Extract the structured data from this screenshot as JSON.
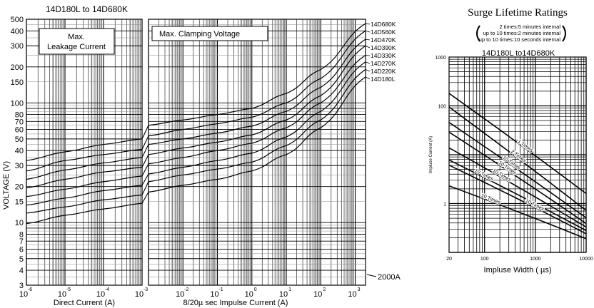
{
  "chart_data": [
    {
      "type": "line",
      "title": "14D180L to 14D680K",
      "ylabel": "VOLTAGE (V)",
      "yscale": "log",
      "ylim": [
        3,
        500
      ],
      "yticks": [
        500,
        400,
        300,
        200,
        150,
        100,
        80,
        70,
        60,
        50,
        40,
        30,
        20,
        15,
        10,
        8,
        7,
        6,
        5,
        4,
        3
      ],
      "panels": [
        {
          "name": "leakage",
          "annotation": [
            "Max.",
            "Leakage Current"
          ],
          "xlabel": "Direct Current  (A)",
          "xscale": "log",
          "xlim_exp": [
            -6,
            -3
          ],
          "xtick_exp": [
            "-6",
            "-5",
            "-4",
            "-3"
          ],
          "x_exp": [
            -6,
            -5,
            -4,
            -3
          ],
          "series": [
            {
              "name": "14D680K",
              "values": [
                33,
                39,
                45,
                50
              ]
            },
            {
              "name": "14D560K",
              "values": [
                27,
                33,
                37,
                41
              ]
            },
            {
              "name": "14D470K",
              "values": [
                23,
                27.5,
                31.5,
                35
              ]
            },
            {
              "name": "14D390K",
              "values": [
                19.5,
                23,
                26.5,
                29
              ]
            },
            {
              "name": "14D330K",
              "values": [
                16.5,
                19,
                22,
                24.5
              ]
            },
            {
              "name": "14D270K",
              "values": [
                14,
                16,
                18.5,
                20.5
              ]
            },
            {
              "name": "14D220K",
              "values": [
                12,
                13.5,
                15.5,
                17
              ]
            },
            {
              "name": "14D180L",
              "values": [
                9.8,
                11.5,
                13,
                14.5
              ]
            }
          ]
        },
        {
          "name": "clamping",
          "annotation": [
            "Max. Clamping Voltage"
          ],
          "xlabel": "8/20µ sec Impulse Current (A)",
          "xscale": "log",
          "xlim_exp": [
            -3,
            3.3
          ],
          "xtick_exp": [
            "-2",
            "-1",
            "0",
            "1",
            "2",
            "3"
          ],
          "x_exp": [
            -3,
            -2,
            -1,
            0,
            1,
            2,
            3.3
          ],
          "marker_label": "2000A",
          "series": [
            {
              "name": "14D680K",
              "values": [
                65,
                72,
                80,
                90,
                120,
                190,
                460
              ]
            },
            {
              "name": "14D560K",
              "values": [
                53,
                60,
                67,
                76,
                100,
                160,
                400
              ]
            },
            {
              "name": "14D470K",
              "values": [
                45,
                50,
                56,
                64,
                85,
                135,
                340
              ]
            },
            {
              "name": "14D390K",
              "values": [
                37,
                42,
                47,
                54,
                72,
                115,
                300
              ]
            },
            {
              "name": "14D330K",
              "values": [
                31,
                35,
                40,
                46,
                62,
                100,
                250
              ]
            },
            {
              "name": "14D270K",
              "values": [
                25.5,
                29,
                33,
                38,
                52,
                85,
                220
              ]
            },
            {
              "name": "14D220K",
              "values": [
                22,
                25,
                28,
                32,
                44,
                72,
                190
              ]
            },
            {
              "name": "14D180L",
              "values": [
                18,
                20.5,
                23,
                27,
                37,
                62,
                165
              ]
            }
          ]
        }
      ],
      "tick_base": "10"
    },
    {
      "type": "line",
      "heading": "Surge Lifetime Ratings",
      "notes": [
        "2 times:5 minutes internal",
        "up to 10 times:2 minutes internal",
        "up to 10 times:10 seconds internal"
      ],
      "title": "14D180L to14D680K",
      "xlabel": "Impluse Width ( µs)",
      "ylabel": "Impluse Current (A)",
      "xscale": "log",
      "yscale": "log",
      "xlim": [
        20,
        10000
      ],
      "ylim": [
        0.1,
        1000
      ],
      "xticks": [
        "20",
        "100",
        "1000",
        "10000"
      ],
      "yticks": [
        "1000",
        "100",
        "1"
      ],
      "x": [
        20,
        10000
      ],
      "series": [
        {
          "name": "1 Times",
          "values": [
            180,
            1.6
          ]
        },
        {
          "name": "2 Times",
          "values": [
            95,
            0.72
          ]
        },
        {
          "name": "10 Times",
          "values": [
            46,
            0.51
          ]
        },
        {
          "name": "10 Times",
          "values": [
            29,
            0.39
          ]
        },
        {
          "name": "10 Times",
          "values": [
            13.8,
            0.33
          ]
        },
        {
          "name": "10 Times",
          "values": [
            7.8,
            0.28
          ]
        },
        {
          "name": "10 Times",
          "values": [
            6.1,
            0.24
          ]
        },
        {
          "name": "10 Times",
          "values": [
            2.3,
            0.19
          ]
        }
      ]
    }
  ]
}
